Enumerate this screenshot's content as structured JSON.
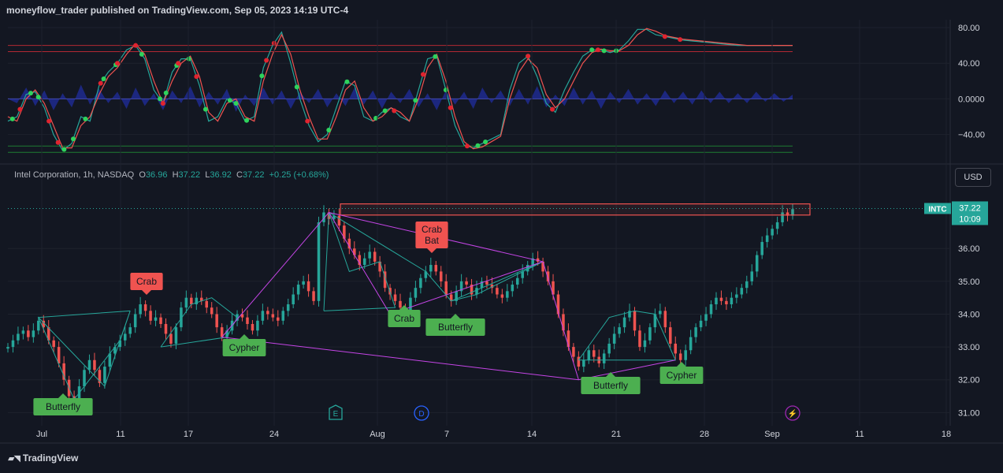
{
  "header": {
    "published": "moneyflow_trader published on TradingView.com, Sep 05, 2023 14:19 UTC-4"
  },
  "legend": {
    "name": "Intel Corporation, 1h, NASDAQ",
    "o_label": "O",
    "o": "36.96",
    "h_label": "H",
    "h": "37.22",
    "l_label": "L",
    "l": "36.92",
    "c_label": "C",
    "c": "37.22",
    "chg": "+0.25 (+0.68%)"
  },
  "currency_button": "USD",
  "price_badge": {
    "ticker": "INTC",
    "price": "37.22",
    "countdown": "10:09"
  },
  "footer": {
    "brand": "TradingView"
  },
  "colors": {
    "bg": "#131722",
    "up": "#26a69a",
    "down": "#ef5350",
    "pattern_teal": "#26a69a",
    "pattern_purple": "#c545e6",
    "label_green": "#4caf50",
    "label_red": "#f05350",
    "grid": "#1e222d"
  },
  "chart_data": [
    {
      "type": "line",
      "panel": "oscillator",
      "y_ticks": [
        80,
        40,
        0,
        -40
      ],
      "y_tick_labels": [
        "80.00",
        "40.00",
        "0.0000",
        "−40.00"
      ],
      "ylim": [
        -66,
        88
      ],
      "levels": [
        60,
        53,
        0,
        -53,
        -60
      ],
      "x_index": [
        0,
        6,
        12,
        18,
        24,
        30,
        36,
        42,
        48,
        54,
        60,
        66,
        72,
        78,
        84,
        90,
        96,
        102,
        108,
        114,
        120,
        126,
        132,
        138,
        144,
        150,
        156,
        162,
        168,
        174,
        180,
        186,
        192,
        198,
        204,
        210,
        216,
        222,
        228,
        234,
        240,
        246,
        252,
        258,
        264,
        270,
        276,
        282,
        288,
        294,
        300,
        306,
        312,
        318,
        324,
        330,
        336,
        342,
        348,
        354,
        360,
        366,
        372,
        378,
        384,
        390,
        396,
        402,
        408,
        414,
        420,
        426,
        432,
        438,
        444,
        450,
        456,
        462,
        468,
        474,
        480,
        486,
        492,
        498,
        504,
        510,
        516
      ],
      "series": [
        {
          "color": "#26a69a",
          "values": [
            -25,
            -20,
            5,
            8,
            -10,
            -40,
            -58,
            -50,
            -20,
            -25,
            15,
            30,
            40,
            55,
            60,
            45,
            10,
            -5,
            30,
            45,
            45,
            15,
            -25,
            -20,
            0,
            -5,
            -25,
            -20,
            35,
            60,
            75,
            40,
            0,
            -30,
            -48,
            -40,
            -10,
            20,
            15,
            -20,
            -25,
            -15,
            -10,
            -20,
            -25,
            10,
            45,
            48,
            10,
            -30,
            -52,
            -55,
            -50,
            -45,
            -40,
            10,
            40,
            48,
            25,
            -5,
            -15,
            10,
            30,
            48,
            55,
            55,
            52,
            55,
            65,
            78,
            78,
            72,
            70,
            68,
            66,
            65,
            64,
            63,
            62,
            61,
            60,
            60,
            60,
            60,
            60,
            60,
            60
          ]
        },
        {
          "color": "#ef5350",
          "values": [
            -20,
            -25,
            0,
            10,
            -5,
            -30,
            -55,
            -55,
            -30,
            -20,
            5,
            25,
            35,
            50,
            62,
            50,
            20,
            -5,
            20,
            40,
            48,
            25,
            -15,
            -25,
            -5,
            0,
            -20,
            -25,
            20,
            50,
            72,
            50,
            10,
            -20,
            -45,
            -45,
            -20,
            10,
            20,
            -10,
            -25,
            -20,
            -10,
            -15,
            -25,
            0,
            35,
            50,
            20,
            -20,
            -48,
            -56,
            -54,
            -48,
            -42,
            0,
            30,
            45,
            35,
            5,
            -10,
            0,
            20,
            40,
            52,
            56,
            54,
            54,
            60,
            72,
            79,
            76,
            71,
            69,
            67,
            66,
            65,
            64,
            63,
            62,
            61,
            60,
            60,
            60,
            60,
            60,
            60
          ]
        },
        {
          "color": "#2a2e9c",
          "style": "histogram",
          "values": [
            0,
            -3,
            8,
            -5,
            6,
            -8,
            4,
            -6,
            10,
            -4,
            7,
            -3,
            5,
            -7,
            8,
            -5,
            4,
            -8,
            6,
            -3,
            9,
            -6,
            5,
            -4,
            7,
            -9,
            3,
            -5,
            8,
            -4,
            6,
            -7,
            5,
            -3,
            7,
            -6,
            4,
            -5,
            8,
            -4,
            6,
            -7,
            5,
            -3,
            7,
            -6,
            4,
            -8,
            6,
            -4,
            5,
            -7,
            8,
            -3,
            6,
            -5,
            7,
            -4,
            9,
            -6,
            3,
            -5,
            8,
            -4,
            6,
            -7,
            5,
            -3,
            7,
            -4,
            4,
            -5,
            6,
            -3,
            5,
            -4,
            6,
            -3,
            5,
            -3,
            4,
            -3,
            5,
            -2,
            4,
            -2,
            3
          ]
        }
      ],
      "dots_green_idx": [
        3,
        15,
        20,
        37,
        43,
        51,
        63,
        71,
        88,
        100,
        104,
        111,
        119,
        130,
        146,
        150,
        157,
        167,
        190,
        211,
        223,
        242,
        248,
        268,
        281,
        288,
        309,
        314,
        342,
        384,
        392,
        400
      ],
      "dots_red_idx": [
        8,
        27,
        33,
        61,
        72,
        84,
        102,
        112,
        124,
        170,
        175,
        197,
        254,
        273,
        291,
        302,
        342,
        358,
        388,
        432,
        442
      ]
    },
    {
      "type": "candlestick",
      "panel": "price",
      "ylim": [
        30.6,
        38.0
      ],
      "y_ticks": [
        31,
        32,
        33,
        34,
        35,
        36
      ],
      "y_tick_labels": [
        "31.00",
        "32.00",
        "33.00",
        "34.00",
        "35.00",
        "36.00"
      ],
      "x_tick_labels": [
        "Jul",
        "11",
        "17",
        "24",
        "Aug",
        "7",
        "14",
        "21",
        "28",
        "Sep",
        "11",
        "18"
      ],
      "x_tick_index": [
        6,
        42,
        62,
        99,
        151,
        192,
        232,
        272,
        312,
        351,
        387,
        428
      ],
      "last_price": 37.22,
      "close": [
        33.0,
        33.2,
        33.4,
        33.5,
        33.3,
        33.5,
        33.8,
        33.6,
        33.2,
        33.0,
        32.5,
        32.0,
        31.5,
        31.4,
        31.8,
        32.3,
        32.6,
        32.3,
        31.9,
        32.4,
        32.8,
        33.0,
        33.2,
        33.4,
        33.6,
        34.0,
        34.3,
        34.1,
        33.8,
        33.9,
        33.7,
        33.4,
        33.1,
        33.6,
        34.2,
        34.5,
        34.3,
        34.5,
        34.4,
        34.2,
        34.0,
        33.6,
        33.3,
        33.5,
        33.8,
        34.0,
        33.9,
        33.7,
        33.5,
        33.8,
        34.1,
        34.0,
        33.9,
        33.8,
        34.1,
        34.3,
        34.6,
        34.9,
        35.0,
        34.7,
        34.4,
        36.8,
        37.1,
        36.9,
        37.0,
        36.7,
        36.3,
        36.0,
        35.8,
        35.5,
        35.7,
        35.9,
        35.6,
        35.3,
        34.8,
        34.6,
        34.4,
        34.2,
        34.0,
        34.5,
        34.8,
        35.1,
        35.3,
        35.5,
        35.3,
        35.0,
        34.6,
        34.4,
        34.7,
        35.0,
        34.9,
        34.6,
        34.8,
        35.0,
        34.9,
        34.8,
        34.6,
        34.5,
        34.7,
        34.9,
        35.1,
        35.3,
        35.5,
        35.7,
        35.6,
        35.3,
        35.0,
        34.6,
        34.0,
        33.5,
        33.0,
        32.7,
        32.4,
        32.6,
        32.9,
        32.7,
        32.5,
        32.8,
        33.1,
        33.4,
        33.6,
        33.9,
        34.1,
        33.5,
        33.0,
        33.2,
        33.6,
        34.0,
        34.1,
        33.6,
        33.1,
        32.8,
        32.6,
        32.9,
        33.3,
        33.6,
        33.8,
        34.0,
        34.3,
        34.5,
        34.4,
        34.3,
        34.5,
        34.6,
        34.8,
        35.0,
        35.3,
        35.8,
        36.2,
        36.4,
        36.6,
        36.8,
        37.1,
        37.0,
        37.2
      ],
      "patterns": [
        {
          "label": "Butterfly",
          "color": "green",
          "pos": "below"
        },
        {
          "label": "Crab",
          "color": "red",
          "pos": "above"
        },
        {
          "label": "Cypher",
          "color": "green",
          "pos": "below"
        },
        {
          "label": "Crab",
          "color": "green",
          "pos": "below"
        },
        {
          "label": "Crab",
          "label2": "Bat",
          "color": "red",
          "pos": "above"
        },
        {
          "label": "Butterfly",
          "color": "green",
          "pos": "below"
        },
        {
          "label": "Butterfly",
          "color": "green",
          "pos": "below"
        },
        {
          "label": "Cypher",
          "color": "green",
          "pos": "below"
        }
      ],
      "event_markers": [
        {
          "label": "E",
          "color": "#26a69a"
        },
        {
          "label": "D",
          "color": "#2962ff"
        },
        {
          "label": "⚡",
          "color": "#9c27b0"
        }
      ]
    }
  ]
}
